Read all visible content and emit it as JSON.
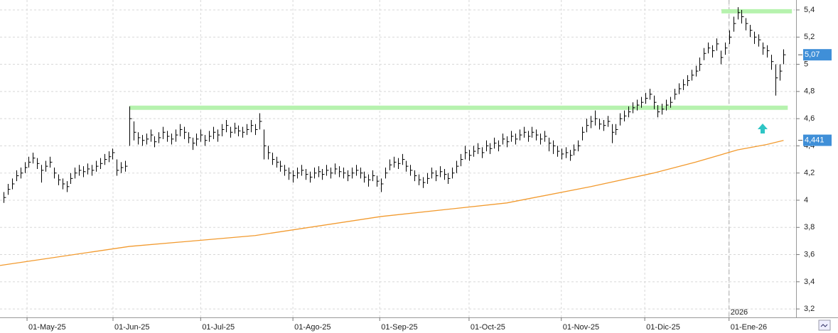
{
  "chart_data": {
    "type": "ohlc",
    "color": "#000000",
    "grid": true,
    "xlim": [
      -0.85,
      188.98
    ],
    "ylim": [
      3.138,
      5.473
    ],
    "xticks": [
      {
        "value": 5.6,
        "label": "01-May-25"
      },
      {
        "value": 26.1,
        "label": "01-Jun-25"
      },
      {
        "value": 47,
        "label": "01-Jul-25"
      },
      {
        "value": 69,
        "label": "01-Ago-25"
      },
      {
        "value": 89.7,
        "label": "01-Sep-25"
      },
      {
        "value": 111,
        "label": "01-Oct-25"
      },
      {
        "value": 133,
        "label": "01-Nov-25"
      },
      {
        "value": 152.9,
        "label": "01-Dic-25"
      },
      {
        "value": 173,
        "label": "01-Ene-26"
      }
    ],
    "yticks": [
      {
        "value": 3.2,
        "label": "3,2"
      },
      {
        "value": 3.4,
        "label": "3,4"
      },
      {
        "value": 3.6,
        "label": "3,6"
      },
      {
        "value": 3.8,
        "label": "3,8"
      },
      4,
      {
        "value": 4.2,
        "label": "4,2"
      },
      {
        "value": 4.4,
        "label": "4,4"
      },
      {
        "value": 4.6,
        "label": "4,6"
      },
      {
        "value": 4.8,
        "label": "4,8"
      },
      5,
      {
        "value": 5.2,
        "label": "5,2"
      },
      {
        "value": 5.4,
        "label": "5,4"
      }
    ],
    "year_marker": {
      "value": 173,
      "label": "2026"
    },
    "high": [
      4.06,
      4.12,
      4.16,
      4.22,
      4.24,
      4.28,
      4.32,
      4.35,
      4.31,
      4.26,
      4.29,
      4.32,
      4.24,
      4.19,
      4.16,
      4.14,
      4.2,
      4.24,
      4.26,
      4.25,
      4.27,
      4.26,
      4.29,
      4.31,
      4.34,
      4.36,
      4.38,
      4.3,
      4.28,
      4.29,
      4.69,
      4.58,
      4.5,
      4.48,
      4.49,
      4.52,
      4.47,
      4.5,
      4.54,
      4.51,
      4.49,
      4.52,
      4.56,
      4.54,
      4.5,
      4.46,
      4.49,
      4.52,
      4.48,
      4.51,
      4.54,
      4.52,
      4.56,
      4.59,
      4.54,
      4.57,
      4.55,
      4.54,
      4.56,
      4.59,
      4.56,
      4.64,
      4.52,
      4.4,
      4.35,
      4.32,
      4.29,
      4.26,
      4.24,
      4.22,
      4.24,
      4.26,
      4.23,
      4.21,
      4.24,
      4.25,
      4.23,
      4.26,
      4.24,
      4.27,
      4.25,
      4.24,
      4.22,
      4.24,
      4.26,
      4.24,
      4.21,
      4.19,
      4.22,
      4.18,
      4.16,
      4.24,
      4.3,
      4.32,
      4.31,
      4.34,
      4.29,
      4.26,
      4.22,
      4.19,
      4.17,
      4.2,
      4.24,
      4.22,
      4.25,
      4.23,
      4.2,
      4.24,
      4.29,
      4.34,
      4.4,
      4.37,
      4.4,
      4.42,
      4.39,
      4.44,
      4.42,
      4.46,
      4.44,
      4.49,
      4.47,
      4.51,
      4.49,
      4.52,
      4.54,
      4.51,
      4.54,
      4.52,
      4.49,
      4.51,
      4.46,
      4.44,
      4.4,
      4.38,
      4.39,
      4.37,
      4.41,
      4.44,
      4.54,
      4.6,
      4.62,
      4.66,
      4.6,
      4.59,
      4.62,
      4.56,
      4.56,
      4.64,
      4.66,
      4.69,
      4.72,
      4.74,
      4.76,
      4.79,
      4.82,
      4.77,
      4.7,
      4.71,
      4.74,
      4.76,
      4.82,
      4.86,
      4.89,
      4.92,
      4.96,
      4.99,
      5.05,
      5.12,
      5.16,
      5.14,
      5.19,
      5.1,
      5.16,
      5.25,
      5.35,
      5.42,
      5.4,
      5.34,
      5.29,
      5.24,
      5.22,
      5.16,
      5.14,
      5.07,
      5.0,
      5.0,
      5.11
    ],
    "low": [
      3.98,
      4.04,
      4.08,
      4.14,
      4.16,
      4.2,
      4.24,
      4.27,
      4.23,
      4.13,
      4.21,
      4.24,
      4.16,
      4.11,
      4.08,
      4.06,
      4.12,
      4.16,
      4.18,
      4.17,
      4.19,
      4.18,
      4.21,
      4.23,
      4.26,
      4.28,
      4.3,
      4.18,
      4.2,
      4.21,
      4.4,
      4.44,
      4.41,
      4.4,
      4.41,
      4.43,
      4.39,
      4.42,
      4.45,
      4.43,
      4.41,
      4.43,
      4.47,
      4.45,
      4.42,
      4.37,
      4.4,
      4.43,
      4.4,
      4.43,
      4.45,
      4.43,
      4.47,
      4.5,
      4.46,
      4.49,
      4.47,
      4.46,
      4.48,
      4.5,
      4.48,
      4.52,
      4.3,
      4.3,
      4.26,
      4.24,
      4.21,
      4.18,
      4.15,
      4.13,
      4.16,
      4.18,
      4.15,
      4.13,
      4.16,
      4.17,
      4.15,
      4.18,
      4.16,
      4.19,
      4.17,
      4.16,
      4.14,
      4.16,
      4.18,
      4.16,
      4.13,
      4.1,
      4.14,
      4.1,
      4.06,
      4.16,
      4.22,
      4.24,
      4.23,
      4.26,
      4.21,
      4.18,
      4.14,
      4.11,
      4.09,
      4.12,
      4.16,
      4.14,
      4.17,
      4.15,
      4.12,
      4.16,
      4.2,
      4.25,
      4.3,
      4.29,
      4.32,
      4.34,
      4.31,
      4.36,
      4.34,
      4.38,
      4.36,
      4.41,
      4.39,
      4.43,
      4.41,
      4.44,
      4.46,
      4.43,
      4.46,
      4.44,
      4.41,
      4.43,
      4.36,
      4.34,
      4.32,
      4.3,
      4.31,
      4.29,
      4.33,
      4.36,
      4.44,
      4.5,
      4.53,
      4.55,
      4.52,
      4.51,
      4.54,
      4.42,
      4.48,
      4.55,
      4.58,
      4.61,
      4.64,
      4.66,
      4.68,
      4.71,
      4.74,
      4.67,
      4.61,
      4.63,
      4.66,
      4.68,
      4.74,
      4.78,
      4.81,
      4.84,
      4.88,
      4.91,
      4.95,
      5.03,
      5.08,
      5.05,
      5.1,
      5.0,
      5.07,
      5.15,
      5.24,
      5.33,
      5.3,
      5.25,
      5.2,
      5.15,
      5.13,
      5.07,
      5.05,
      4.96,
      4.77,
      4.88,
      5.0
    ],
    "close": [
      4.02,
      4.08,
      4.12,
      4.18,
      4.2,
      4.24,
      4.28,
      4.31,
      4.27,
      4.22,
      4.25,
      4.28,
      4.2,
      4.15,
      4.12,
      4.1,
      4.16,
      4.2,
      4.22,
      4.21,
      4.23,
      4.22,
      4.25,
      4.27,
      4.3,
      4.32,
      4.35,
      4.22,
      4.24,
      4.25,
      4.6,
      4.5,
      4.46,
      4.44,
      4.45,
      4.48,
      4.43,
      4.46,
      4.5,
      4.47,
      4.45,
      4.48,
      4.52,
      4.5,
      4.46,
      4.42,
      4.45,
      4.48,
      4.44,
      4.47,
      4.5,
      4.48,
      4.52,
      4.55,
      4.5,
      4.53,
      4.51,
      4.5,
      4.52,
      4.55,
      4.52,
      4.58,
      4.4,
      4.35,
      4.3,
      4.28,
      4.25,
      4.22,
      4.2,
      4.18,
      4.2,
      4.22,
      4.19,
      4.17,
      4.2,
      4.21,
      4.19,
      4.22,
      4.2,
      4.23,
      4.21,
      4.2,
      4.18,
      4.2,
      4.22,
      4.2,
      4.17,
      4.15,
      4.18,
      4.14,
      4.12,
      4.2,
      4.26,
      4.28,
      4.27,
      4.3,
      4.25,
      4.22,
      4.18,
      4.15,
      4.13,
      4.16,
      4.2,
      4.18,
      4.21,
      4.19,
      4.16,
      4.2,
      4.25,
      4.3,
      4.35,
      4.33,
      4.36,
      4.38,
      4.35,
      4.4,
      4.38,
      4.42,
      4.4,
      4.45,
      4.43,
      4.47,
      4.45,
      4.48,
      4.5,
      4.47,
      4.5,
      4.48,
      4.45,
      4.47,
      4.42,
      4.4,
      4.36,
      4.34,
      4.35,
      4.33,
      4.37,
      4.4,
      4.5,
      4.55,
      4.58,
      4.6,
      4.56,
      4.55,
      4.58,
      4.5,
      4.52,
      4.6,
      4.62,
      4.65,
      4.68,
      4.7,
      4.72,
      4.75,
      4.78,
      4.72,
      4.65,
      4.67,
      4.7,
      4.72,
      4.78,
      4.82,
      4.85,
      4.88,
      4.92,
      4.95,
      5.0,
      5.08,
      5.12,
      5.1,
      5.15,
      5.05,
      5.12,
      5.2,
      5.3,
      5.38,
      5.35,
      5.3,
      5.25,
      5.2,
      5.18,
      5.12,
      5.1,
      5.02,
      4.9,
      4.95,
      5.07
    ],
    "last_price": {
      "value": 5.07,
      "label": "5,07"
    },
    "moving_average": {
      "color": "#f29a2e",
      "x": [
        -0.85,
        30,
        60,
        90,
        120,
        140,
        155,
        165,
        175,
        182,
        186
      ],
      "values": [
        3.52,
        3.66,
        3.74,
        3.88,
        3.98,
        4.1,
        4.2,
        4.28,
        4.37,
        4.41,
        4.44
      ],
      "last": {
        "value": 4.441,
        "label": "4,441"
      }
    },
    "levels": [
      {
        "value": 5.39,
        "x": [
          171.2,
          188
        ],
        "color": "#b6f2ae"
      },
      {
        "value": 4.68,
        "x": [
          30,
          187
        ],
        "color": "#b6f2ae"
      }
    ]
  }
}
